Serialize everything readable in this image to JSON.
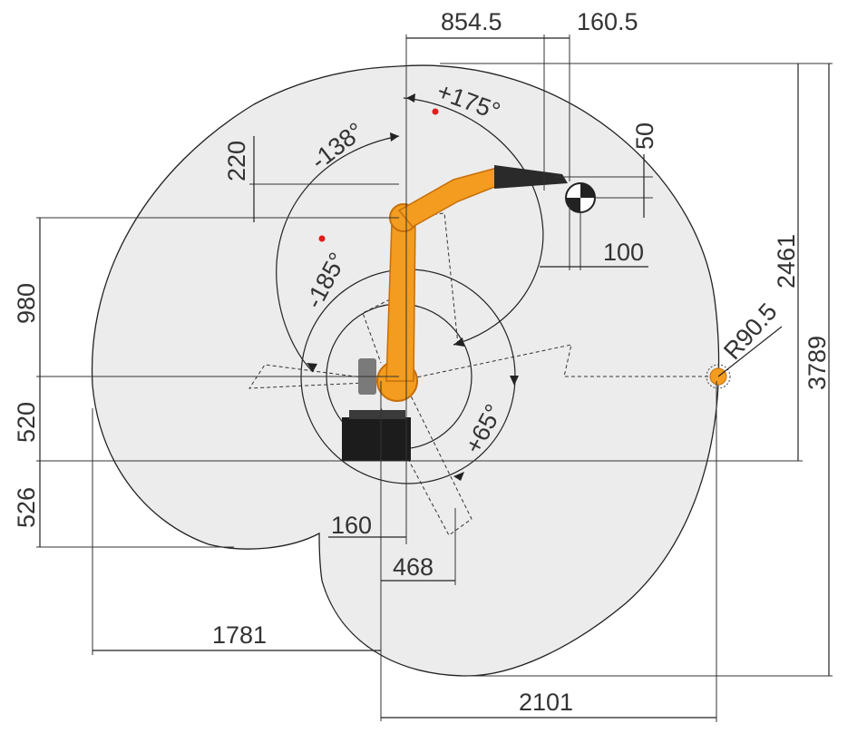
{
  "dimensions": {
    "top_reach": "854.5",
    "top_wrist": "160.5",
    "wrist_height": "50",
    "flange_offset": "100",
    "total_height": "2461",
    "overall_height": "3789",
    "wrist_radius": "R90.5",
    "left_upper": "220",
    "arm_height": "980",
    "base_height": "520",
    "below_base": "526",
    "base_offset": "160",
    "rear_offset": "468",
    "rear_reach": "1781",
    "front_reach": "2101"
  },
  "angles": {
    "axis3_pos": "+175°",
    "axis2_neg": "-138°",
    "axis3_neg": "-185°",
    "axis2_pos": "+65°"
  },
  "colors": {
    "workspace_fill": "#ececec",
    "outline": "#222222",
    "robot_orange": "#f39c1f",
    "robot_dark": "#c66f0a",
    "base_black": "#1c1c1c",
    "marker_red": "#e01d1d"
  }
}
